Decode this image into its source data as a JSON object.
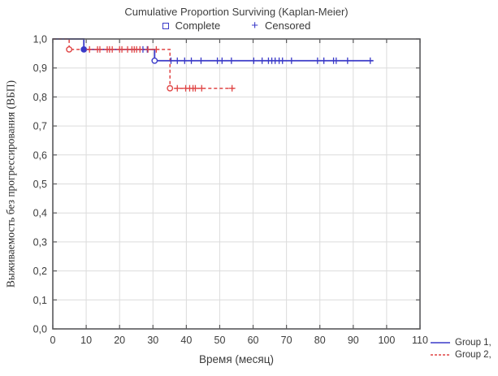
{
  "chart_data": {
    "type": "line",
    "subtype": "kaplan-meier-step",
    "title": "Cumulative Proportion Surviving (Kaplan-Meier)",
    "marker_legend": [
      {
        "label": "Complete",
        "marker": "open-square"
      },
      {
        "label": "Censored",
        "marker": "plus",
        "glyph": "+"
      }
    ],
    "xlabel": "Время (месяц)",
    "ylabel": "Выживаемость без прогрессирования (ВБП)",
    "xlim": [
      0,
      110
    ],
    "ylim": [
      0.0,
      1.0
    ],
    "grid": true,
    "x_ticks": [
      {
        "v": 0,
        "label": "0"
      },
      {
        "v": 10,
        "label": "10"
      },
      {
        "v": 20,
        "label": "20"
      },
      {
        "v": 30,
        "label": "30"
      },
      {
        "v": 40,
        "label": "40"
      },
      {
        "v": 50,
        "label": "50"
      },
      {
        "v": 60,
        "label": "60"
      },
      {
        "v": 70,
        "label": "70"
      },
      {
        "v": 80,
        "label": "80"
      },
      {
        "v": 90,
        "label": "90"
      },
      {
        "v": 100,
        "label": "100"
      },
      {
        "v": 110,
        "label": "110"
      }
    ],
    "y_ticks": [
      {
        "v": 0.0,
        "label": "0,0"
      },
      {
        "v": 0.1,
        "label": "0,1"
      },
      {
        "v": 0.2,
        "label": "0,2"
      },
      {
        "v": 0.3,
        "label": "0,3"
      },
      {
        "v": 0.4,
        "label": "0,4"
      },
      {
        "v": 0.5,
        "label": "0,5"
      },
      {
        "v": 0.6,
        "label": "0,6"
      },
      {
        "v": 0.7,
        "label": "0,7"
      },
      {
        "v": 0.8,
        "label": "0,8"
      },
      {
        "v": 0.9,
        "label": "0,9"
      },
      {
        "v": 1.0,
        "label": "1,0"
      }
    ],
    "colors": {
      "group1": "#3a3ac8",
      "group2": "#e04444",
      "frame": "#59595b",
      "grid": "#dcdcdc",
      "text": "#3c3c3c"
    },
    "series": [
      {
        "name": "Group 1,",
        "color": "#3a3ac8",
        "line": "solid",
        "steps": [
          [
            0,
            1.0
          ],
          [
            9.3,
            1.0
          ],
          [
            9.3,
            0.964
          ],
          [
            30.5,
            0.964
          ],
          [
            30.5,
            0.925
          ],
          [
            96,
            0.925
          ]
        ],
        "events": [
          {
            "x": 9.3,
            "y": 0.964,
            "filled": true
          },
          {
            "x": 30.5,
            "y": 0.925,
            "filled": false
          }
        ],
        "censored": [
          [
            27,
            0.964
          ],
          [
            28.3,
            0.964
          ],
          [
            35.4,
            0.925
          ],
          [
            37.3,
            0.925
          ],
          [
            39.5,
            0.925
          ],
          [
            41.5,
            0.925
          ],
          [
            44.4,
            0.925
          ],
          [
            49.3,
            0.925
          ],
          [
            50.7,
            0.925
          ],
          [
            53.5,
            0.925
          ],
          [
            60.2,
            0.925
          ],
          [
            62.7,
            0.925
          ],
          [
            64.6,
            0.925
          ],
          [
            65.6,
            0.925
          ],
          [
            66.6,
            0.925
          ],
          [
            67.8,
            0.925
          ],
          [
            68.8,
            0.925
          ],
          [
            71.5,
            0.925
          ],
          [
            79.3,
            0.925
          ],
          [
            81.2,
            0.925
          ],
          [
            84.1,
            0.925
          ],
          [
            84.9,
            0.925
          ],
          [
            88.3,
            0.925
          ],
          [
            95.1,
            0.925
          ]
        ]
      },
      {
        "name": "Group 2,",
        "color": "#e04444",
        "line": "dashed",
        "steps": [
          [
            0,
            1.0
          ],
          [
            4.9,
            1.0
          ],
          [
            4.9,
            0.964
          ],
          [
            35.1,
            0.964
          ],
          [
            35.1,
            0.83
          ],
          [
            55,
            0.83
          ]
        ],
        "events": [
          {
            "x": 4.9,
            "y": 0.964,
            "filled": false
          },
          {
            "x": 35.1,
            "y": 0.83,
            "filled": false
          }
        ],
        "censored": [
          [
            11,
            0.964
          ],
          [
            13.4,
            0.964
          ],
          [
            14.1,
            0.964
          ],
          [
            16.3,
            0.964
          ],
          [
            17,
            0.964
          ],
          [
            17.8,
            0.964
          ],
          [
            20,
            0.964
          ],
          [
            20.7,
            0.964
          ],
          [
            22.4,
            0.964
          ],
          [
            23.7,
            0.964
          ],
          [
            24.4,
            0.964
          ],
          [
            25.1,
            0.964
          ],
          [
            26.1,
            0.964
          ],
          [
            28.5,
            0.964
          ],
          [
            31,
            0.964
          ],
          [
            37.3,
            0.83
          ],
          [
            39.8,
            0.83
          ],
          [
            41,
            0.83
          ],
          [
            42,
            0.83
          ],
          [
            42.7,
            0.83
          ],
          [
            44.6,
            0.83
          ],
          [
            53.7,
            0.83
          ]
        ]
      }
    ],
    "series_legend": {
      "position": "right-bottom",
      "entries": [
        "Group 1,",
        "Group 2,"
      ]
    }
  }
}
